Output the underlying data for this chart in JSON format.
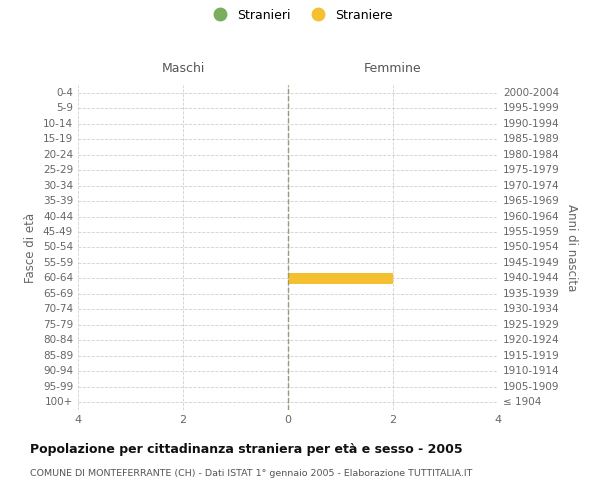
{
  "age_groups": [
    "100+",
    "95-99",
    "90-94",
    "85-89",
    "80-84",
    "75-79",
    "70-74",
    "65-69",
    "60-64",
    "55-59",
    "50-54",
    "45-49",
    "40-44",
    "35-39",
    "30-34",
    "25-29",
    "20-24",
    "15-19",
    "10-14",
    "5-9",
    "0-4"
  ],
  "birth_years": [
    "≤ 1904",
    "1905-1909",
    "1910-1914",
    "1915-1919",
    "1920-1924",
    "1925-1929",
    "1930-1934",
    "1935-1939",
    "1940-1944",
    "1945-1949",
    "1950-1954",
    "1955-1959",
    "1960-1964",
    "1965-1969",
    "1970-1974",
    "1975-1979",
    "1980-1984",
    "1985-1989",
    "1990-1994",
    "1995-1999",
    "2000-2004"
  ],
  "maschi_stranieri": [
    0,
    0,
    0,
    0,
    0,
    0,
    0,
    0,
    0,
    0,
    0,
    0,
    0,
    0,
    0,
    0,
    0,
    0,
    0,
    0,
    0
  ],
  "femmine_straniere": [
    0,
    0,
    0,
    0,
    0,
    0,
    0,
    0,
    2,
    0,
    0,
    0,
    0,
    0,
    0,
    0,
    0,
    0,
    0,
    0,
    0
  ],
  "stranieri_color": "#7aad5e",
  "straniere_color": "#f5c030",
  "xlim": 4,
  "title": "Popolazione per cittadinanza straniera per età e sesso - 2005",
  "subtitle": "COMUNE DI MONTEFERRANTE (CH) - Dati ISTAT 1° gennaio 2005 - Elaborazione TUTTITALIA.IT",
  "left_label": "Maschi",
  "right_label": "Femmine",
  "left_axis_label": "Fasce di età",
  "right_axis_label": "Anni di nascita",
  "bg_color": "#ffffff",
  "grid_color": "#d0d0d0",
  "bar_height": 0.75,
  "legend_stranieri": "Stranieri",
  "legend_straniere": "Straniere"
}
